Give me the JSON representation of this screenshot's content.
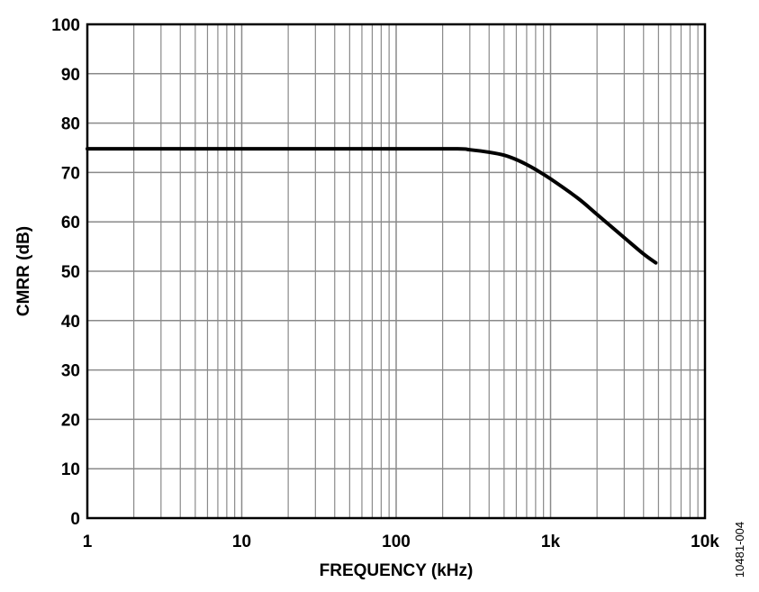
{
  "chart_data": {
    "type": "line",
    "xlabel": "FREQUENCY (kHz)",
    "ylabel": "CMRR (dB)",
    "x_scale": "log",
    "xlim": [
      1,
      10000
    ],
    "ylim": [
      0,
      100
    ],
    "x_ticks": [
      {
        "value": 1,
        "label": "1"
      },
      {
        "value": 10,
        "label": "10"
      },
      {
        "value": 100,
        "label": "100"
      },
      {
        "value": 1000,
        "label": "1k"
      },
      {
        "value": 10000,
        "label": "10k"
      }
    ],
    "y_ticks": [
      0,
      10,
      20,
      30,
      40,
      50,
      60,
      70,
      80,
      90,
      100
    ],
    "grid": true,
    "series": [
      {
        "color": "#000000",
        "x": [
          1,
          10,
          100,
          250,
          300,
          400,
          500,
          600,
          700,
          800,
          1000,
          1500,
          2000,
          3000,
          4000,
          4800
        ],
        "y": [
          74.8,
          74.8,
          74.8,
          74.8,
          74.6,
          74.1,
          73.5,
          72.6,
          71.6,
          70.6,
          68.7,
          64.8,
          61.5,
          56.8,
          53.5,
          51.7
        ]
      }
    ],
    "annotation": "10481-004"
  }
}
